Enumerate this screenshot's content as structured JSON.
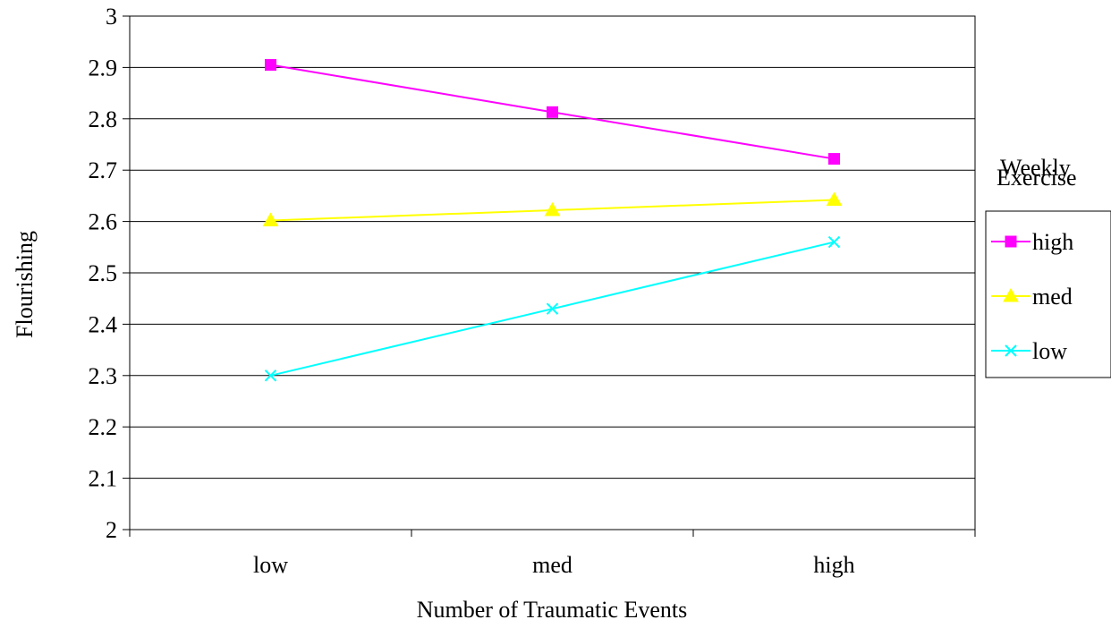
{
  "chart_data": {
    "type": "line",
    "xlabel": "Number of Traumatic Events",
    "ylabel": "Flourishing",
    "categories": [
      "low",
      "med",
      "high"
    ],
    "ylim": [
      2,
      3
    ],
    "yticks": [
      "2",
      "2.1",
      "2.2",
      "2.3",
      "2.4",
      "2.5",
      "2.6",
      "2.7",
      "2.8",
      "2.9",
      "3"
    ],
    "grid": true,
    "legend": {
      "title_line1": "Weekly",
      "title_line2": "Exercise",
      "placement": "right"
    },
    "series": [
      {
        "name": "high",
        "color": "#FF00FF",
        "marker": "square",
        "values": [
          2.905,
          2.813,
          2.722
        ]
      },
      {
        "name": "med",
        "color": "#FFFF00",
        "marker": "triangle",
        "values": [
          2.602,
          2.622,
          2.642
        ]
      },
      {
        "name": "low",
        "color": "#00FFFF",
        "marker": "x",
        "values": [
          2.3,
          2.43,
          2.56
        ]
      }
    ]
  }
}
